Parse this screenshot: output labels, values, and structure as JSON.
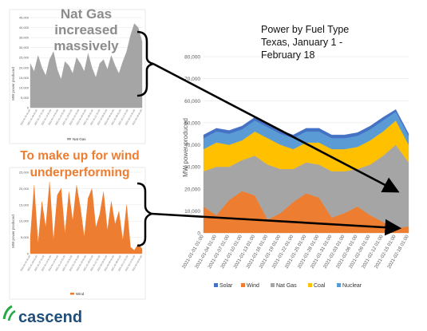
{
  "callouts": {
    "natgas_line1": "Nat Gas",
    "natgas_line2": "increased",
    "natgas_line3": "massively",
    "wind_line1": "To make up for wind",
    "wind_line2": "underperforming"
  },
  "logo": {
    "text": "cascend"
  },
  "colors": {
    "solar": "#4472c4",
    "wind": "#ed7d31",
    "natgas": "#a5a5a5",
    "coal": "#ffc000",
    "nuclear": "#5b9bd5",
    "callout_gray": "#8c8c8c",
    "callout_orange": "#ed7d31",
    "arrow": "#000000",
    "logo_green": "#27a846"
  },
  "chart_data": [
    {
      "id": "main",
      "type": "area",
      "title_lines": [
        "Power by Fuel Type",
        "Texas, January 1 -",
        "February 18"
      ],
      "ylabel": "MW power produced",
      "ylim": [
        0,
        80000
      ],
      "yticks": [
        "0",
        "10,000",
        "20,000",
        "30,000",
        "40,000",
        "50,000",
        "60,000",
        "70,000",
        "80,000"
      ],
      "x_dates": [
        "2021-01-01 01:00",
        "2021-01-04 01:00",
        "2021-01-07 01:00",
        "2021-01-10 01:00",
        "2021-01-13 01:00",
        "2021-01-16 01:00",
        "2021-01-19 01:00",
        "2021-01-22 01:00",
        "2021-01-25 01:00",
        "2021-01-28 01:00",
        "2021-01-31 01:00",
        "2021-02-03 01:00",
        "2021-02-06 01:00",
        "2021-02-09 01:00",
        "2021-02-12 01:00",
        "2021-02-15 01:00",
        "2021-02-18 01:00"
      ],
      "legend": [
        "Solar",
        "Wind",
        "Nat Gas",
        "Coal",
        "Nuclear"
      ],
      "legend_position": "bottom",
      "grid": true,
      "stack_order": [
        "wind",
        "natgas",
        "coal",
        "nuclear",
        "solar"
      ],
      "series": {
        "wind": [
          12000,
          8000,
          15000,
          19000,
          17000,
          6000,
          9000,
          14000,
          18000,
          16000,
          7000,
          9000,
          12000,
          8000,
          5000,
          2000,
          3000
        ],
        "natgas": [
          16000,
          22000,
          15000,
          14000,
          18000,
          25000,
          20000,
          15000,
          14000,
          15000,
          21000,
          19000,
          17000,
          23000,
          30000,
          38000,
          29000
        ],
        "coal": [
          10000,
          11000,
          10000,
          9000,
          11000,
          12000,
          11000,
          9000,
          9000,
          10000,
          10000,
          10000,
          10000,
          11000,
          11000,
          11000,
          8000
        ],
        "nuclear": [
          5000,
          5000,
          5000,
          5000,
          5000,
          5000,
          5000,
          5000,
          5000,
          5000,
          5000,
          5000,
          5000,
          5000,
          5000,
          4000,
          4000
        ],
        "solar": [
          1500,
          1500,
          1500,
          1500,
          1500,
          1500,
          1500,
          1500,
          1500,
          1500,
          1500,
          1500,
          1500,
          1500,
          1500,
          1000,
          1000
        ]
      }
    },
    {
      "id": "natgas_inset",
      "type": "area",
      "ylabel": "MW power produced",
      "ylim": [
        0,
        45000
      ],
      "yticks": [
        "0",
        "5,000",
        "10,000",
        "15,000",
        "20,000",
        "25,000",
        "30,000",
        "35,000",
        "40,000",
        "45,000"
      ],
      "legend": [
        "Nat Gas"
      ],
      "series_values": [
        22000,
        18000,
        26000,
        20000,
        16000,
        24000,
        28000,
        19000,
        14000,
        23000,
        21000,
        17000,
        25000,
        22000,
        18000,
        27000,
        20000,
        15000,
        22000,
        24000,
        19000,
        26000,
        21000,
        17000,
        23000,
        28000,
        36000,
        42000,
        40000,
        33000
      ]
    },
    {
      "id": "wind_inset",
      "type": "area",
      "ylabel": "MW power produced",
      "ylim": [
        0,
        25000
      ],
      "yticks": [
        "0",
        "5,000",
        "10,000",
        "15,000",
        "20,000",
        "25,000"
      ],
      "legend": [
        "Wind"
      ],
      "series_values": [
        5000,
        21000,
        3000,
        16000,
        8000,
        22000,
        4000,
        18000,
        20000,
        6000,
        19000,
        10000,
        21000,
        14000,
        5000,
        17000,
        20000,
        8000,
        12000,
        19000,
        7000,
        16000,
        9000,
        13000,
        4000,
        15000,
        2000,
        1000,
        3000,
        1500
      ]
    }
  ]
}
